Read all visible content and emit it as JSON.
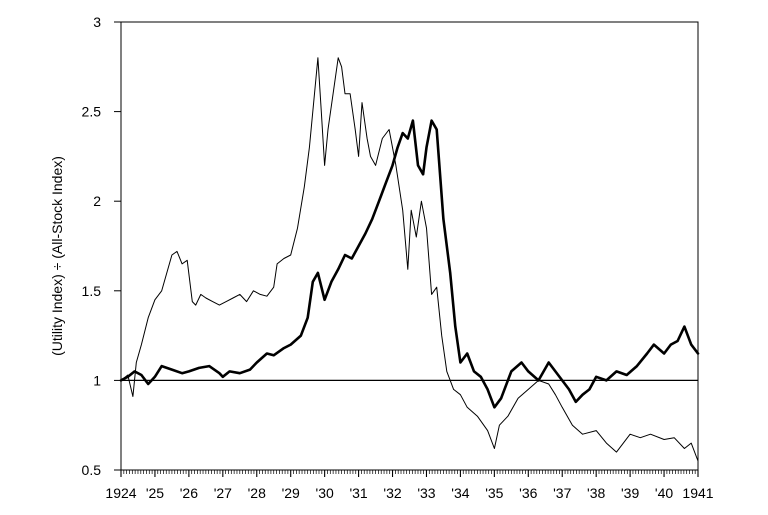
{
  "chart_data": {
    "type": "line",
    "title": "",
    "xlabel": "",
    "ylabel": "(Utility Index) ÷ (All-Stock Index)",
    "xlim": [
      1924.0,
      1941.0
    ],
    "ylim": [
      0.5,
      3.0
    ],
    "grid": false,
    "legend": "none",
    "y_ticks": [
      0.5,
      1,
      1.5,
      2,
      2.5,
      3
    ],
    "y_tick_labels": [
      "0.5",
      "1",
      "1.5",
      "2",
      "2.5",
      "3"
    ],
    "x_ticks": [
      1924,
      1925,
      1926,
      1927,
      1928,
      1929,
      1930,
      1931,
      1932,
      1933,
      1934,
      1935,
      1936,
      1937,
      1938,
      1939,
      1940,
      1941
    ],
    "x_tick_labels": [
      "1924",
      "'25",
      "'26",
      "'27",
      "'28",
      "'29",
      "'30",
      "'31",
      "'32",
      "'33",
      "'34",
      "'35",
      "'36",
      "'37",
      "'38",
      "'39",
      "'40",
      "1941"
    ],
    "reference_line": {
      "y": 1.0
    },
    "series": [
      {
        "style": "thin",
        "color": "#000000",
        "x": [
          1924.0,
          1924.2,
          1924.35,
          1924.45,
          1924.6,
          1924.8,
          1925.0,
          1925.2,
          1925.35,
          1925.5,
          1925.65,
          1925.8,
          1925.95,
          1926.1,
          1926.2,
          1926.35,
          1926.5,
          1926.7,
          1926.9,
          1927.1,
          1927.3,
          1927.5,
          1927.7,
          1927.9,
          1928.1,
          1928.3,
          1928.5,
          1928.6,
          1928.8,
          1929.0,
          1929.2,
          1929.4,
          1929.55,
          1929.7,
          1929.8,
          1929.9,
          1930.0,
          1930.1,
          1930.25,
          1930.4,
          1930.5,
          1930.6,
          1930.75,
          1930.9,
          1931.0,
          1931.1,
          1931.25,
          1931.35,
          1931.5,
          1931.7,
          1931.9,
          1932.1,
          1932.3,
          1932.45,
          1932.55,
          1932.7,
          1932.85,
          1933.0,
          1933.15,
          1933.3,
          1933.45,
          1933.6,
          1933.8,
          1934.0,
          1934.2,
          1934.5,
          1934.8,
          1935.0,
          1935.15,
          1935.4,
          1935.7,
          1936.0,
          1936.3,
          1936.6,
          1936.8,
          1937.0,
          1937.3,
          1937.6,
          1938.0,
          1938.3,
          1938.6,
          1939.0,
          1939.3,
          1939.6,
          1940.0,
          1940.3,
          1940.6,
          1940.8,
          1941.0
        ],
        "y": [
          1.0,
          1.03,
          0.91,
          1.1,
          1.2,
          1.35,
          1.45,
          1.5,
          1.6,
          1.7,
          1.72,
          1.65,
          1.67,
          1.44,
          1.42,
          1.48,
          1.46,
          1.44,
          1.42,
          1.44,
          1.46,
          1.48,
          1.44,
          1.5,
          1.48,
          1.47,
          1.52,
          1.65,
          1.68,
          1.7,
          1.85,
          2.08,
          2.3,
          2.6,
          2.8,
          2.5,
          2.2,
          2.4,
          2.6,
          2.8,
          2.75,
          2.6,
          2.6,
          2.4,
          2.25,
          2.55,
          2.35,
          2.25,
          2.2,
          2.35,
          2.4,
          2.2,
          1.95,
          1.62,
          1.95,
          1.8,
          2.0,
          1.85,
          1.48,
          1.52,
          1.25,
          1.05,
          0.95,
          0.92,
          0.85,
          0.8,
          0.72,
          0.62,
          0.75,
          0.8,
          0.9,
          0.95,
          1.0,
          0.98,
          0.92,
          0.85,
          0.75,
          0.7,
          0.72,
          0.65,
          0.6,
          0.7,
          0.68,
          0.7,
          0.67,
          0.68,
          0.62,
          0.65,
          0.55
        ]
      },
      {
        "style": "thick",
        "color": "#000000",
        "x": [
          1924.0,
          1924.2,
          1924.4,
          1924.6,
          1924.8,
          1925.0,
          1925.2,
          1925.5,
          1925.8,
          1926.0,
          1926.3,
          1926.6,
          1926.9,
          1927.0,
          1927.2,
          1927.5,
          1927.8,
          1928.0,
          1928.3,
          1928.5,
          1928.8,
          1929.0,
          1929.3,
          1929.5,
          1929.65,
          1929.8,
          1930.0,
          1930.2,
          1930.4,
          1930.6,
          1930.8,
          1931.0,
          1931.2,
          1931.4,
          1931.6,
          1931.8,
          1932.0,
          1932.15,
          1932.3,
          1932.45,
          1932.6,
          1932.75,
          1932.9,
          1933.0,
          1933.15,
          1933.3,
          1933.5,
          1933.7,
          1933.85,
          1934.0,
          1934.2,
          1934.4,
          1934.6,
          1934.8,
          1935.0,
          1935.2,
          1935.5,
          1935.8,
          1936.0,
          1936.3,
          1936.6,
          1936.8,
          1937.0,
          1937.2,
          1937.4,
          1937.6,
          1937.8,
          1938.0,
          1938.3,
          1938.6,
          1938.9,
          1939.2,
          1939.5,
          1939.7,
          1940.0,
          1940.2,
          1940.4,
          1940.6,
          1940.8,
          1941.0
        ],
        "y": [
          1.0,
          1.02,
          1.05,
          1.03,
          0.98,
          1.02,
          1.08,
          1.06,
          1.04,
          1.05,
          1.07,
          1.08,
          1.04,
          1.02,
          1.05,
          1.04,
          1.06,
          1.1,
          1.15,
          1.14,
          1.18,
          1.2,
          1.25,
          1.35,
          1.55,
          1.6,
          1.45,
          1.55,
          1.62,
          1.7,
          1.68,
          1.75,
          1.82,
          1.9,
          2.0,
          2.1,
          2.2,
          2.3,
          2.38,
          2.35,
          2.45,
          2.2,
          2.15,
          2.3,
          2.45,
          2.4,
          1.9,
          1.6,
          1.3,
          1.1,
          1.15,
          1.05,
          1.02,
          0.95,
          0.85,
          0.9,
          1.05,
          1.1,
          1.05,
          1.0,
          1.1,
          1.05,
          1.0,
          0.95,
          0.88,
          0.92,
          0.95,
          1.02,
          1.0,
          1.05,
          1.03,
          1.08,
          1.15,
          1.2,
          1.15,
          1.2,
          1.22,
          1.3,
          1.2,
          1.15
        ]
      }
    ]
  }
}
